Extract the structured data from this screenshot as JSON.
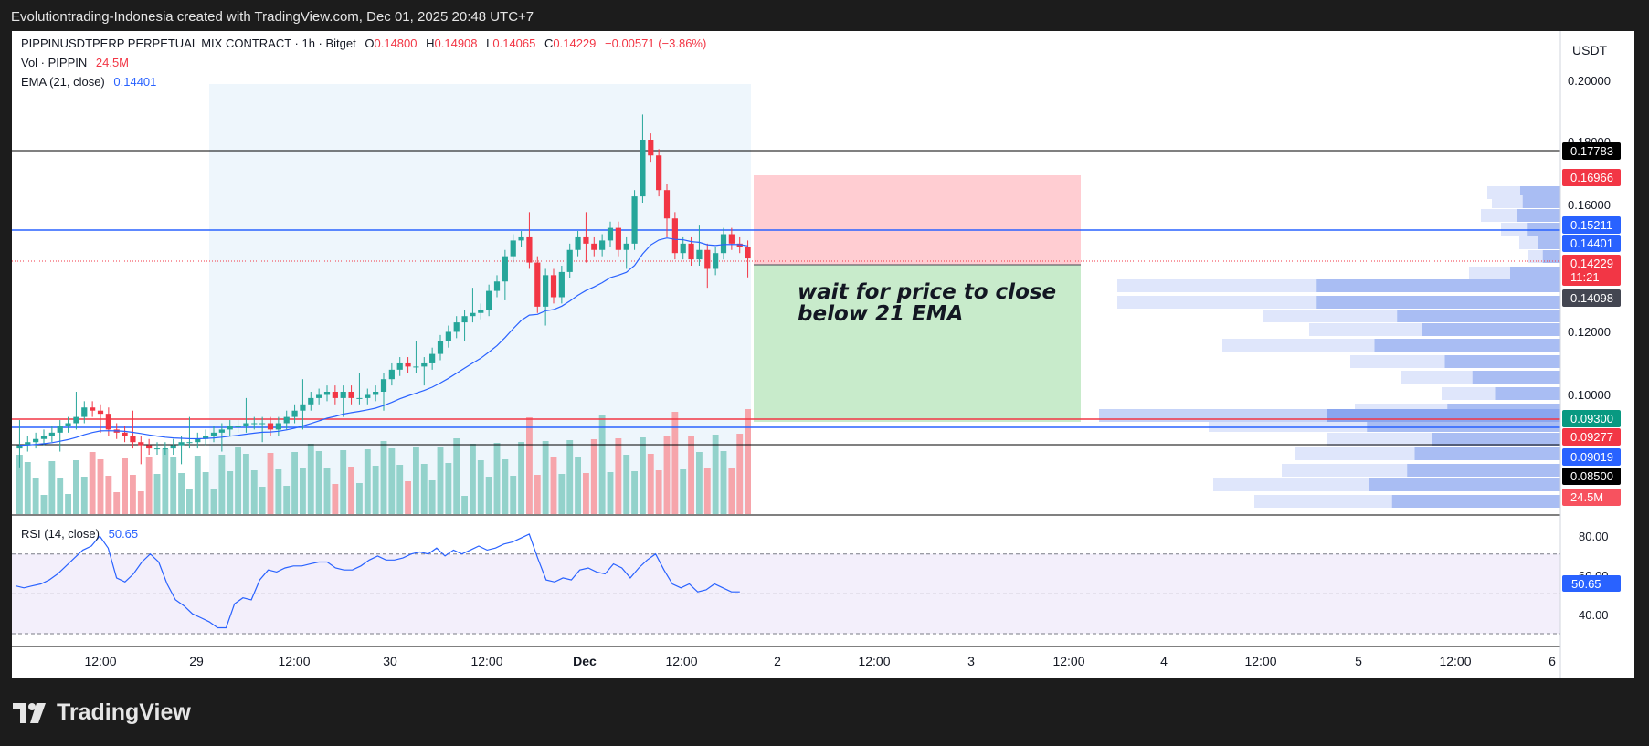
{
  "header": {
    "caption": "Evolutiontrading-Indonesia created with TradingView.com, Dec 01, 2025 20:48 UTC+7"
  },
  "legend": {
    "symbol": "PIPPINUSDTPERP PERPETUAL MIX CONTRACT · 1h · Bitget",
    "open_label": "O",
    "open": "0.14800",
    "high_label": "H",
    "high": "0.14908",
    "low_label": "L",
    "low": "0.14065",
    "close_label": "C",
    "close": "0.14229",
    "change": "−0.00571 (−3.86%)",
    "vol_label": "Vol · PIPPIN",
    "vol_value": "24.5M",
    "ema_label": "EMA (21, close)",
    "ema_value": "0.14401",
    "rsi_label": "RSI (14, close)",
    "rsi_value": "50.65"
  },
  "currency": "USDT",
  "annotation": {
    "line1": "wait for price to close",
    "line2": "below 21 EMA"
  },
  "brand": {
    "name": "TradingView"
  },
  "price_axis": {
    "ticks": [
      "0.20000",
      "0.18000",
      "0.16000",
      "0.12000",
      "0.10000"
    ],
    "rsi_ticks": [
      "80.00",
      "60.00",
      "40.00"
    ]
  },
  "price_labels": [
    {
      "text": "0.17783",
      "color": "#000000"
    },
    {
      "text": "0.16966",
      "color": "#f23645"
    },
    {
      "text": "0.15211",
      "color": "#2962ff"
    },
    {
      "text": "0.14401",
      "color": "#2962ff"
    },
    {
      "text": "0.14229",
      "color": "#f23645",
      "sub": "11:21"
    },
    {
      "text": "0.14098",
      "color": "#434651"
    },
    {
      "text": "0.09300",
      "color": "#089981"
    },
    {
      "text": "0.09277",
      "color": "#f23645"
    },
    {
      "text": "0.09019",
      "color": "#2962ff"
    },
    {
      "text": "0.08500",
      "color": "#000000"
    },
    {
      "text": "24.5M",
      "color": "#f7525f"
    }
  ],
  "time_axis": [
    "12:00",
    "29",
    "12:00",
    "30",
    "12:00",
    "Dec",
    "12:00",
    "2",
    "12:00",
    "3",
    "12:00",
    "4",
    "12:00",
    "5",
    "12:00",
    "6"
  ],
  "colors": {
    "up": "#26a69a",
    "down": "#f23645",
    "ema": "#2962ff",
    "rsi": "#2962ff",
    "stop_zone": "#ffcdd2",
    "target_zone": "#c8ebcb",
    "session": "#eef6fc"
  },
  "chart_data": {
    "type": "candlestick",
    "timeframe": "1h",
    "price_range": [
      0.08,
      0.205
    ],
    "levels": [
      0.17783,
      0.16966,
      0.15211,
      0.14401,
      0.14229,
      0.14098,
      0.093,
      0.09277,
      0.09019,
      0.085
    ],
    "price_series": [
      0.083,
      0.084,
      0.085,
      0.086,
      0.087,
      0.089,
      0.09,
      0.092,
      0.095,
      0.094,
      0.093,
      0.088,
      0.087,
      0.086,
      0.084,
      0.083,
      0.082,
      0.082,
      0.082,
      0.083,
      0.084,
      0.084,
      0.085,
      0.086,
      0.087,
      0.088,
      0.089,
      0.089,
      0.09,
      0.09,
      0.09,
      0.088,
      0.09,
      0.092,
      0.094,
      0.096,
      0.098,
      0.099,
      0.1,
      0.098,
      0.1,
      0.098,
      0.098,
      0.099,
      0.1,
      0.104,
      0.107,
      0.109,
      0.108,
      0.108,
      0.109,
      0.112,
      0.116,
      0.119,
      0.122,
      0.124,
      0.125,
      0.126,
      0.132,
      0.135,
      0.143,
      0.148,
      0.149,
      0.141,
      0.127,
      0.137,
      0.13,
      0.138,
      0.145,
      0.149,
      0.147,
      0.145,
      0.148,
      0.152,
      0.145,
      0.147,
      0.162,
      0.18,
      0.175,
      0.164,
      0.155,
      0.144,
      0.147,
      0.142,
      0.145,
      0.139,
      0.144,
      0.15,
      0.147,
      0.146,
      0.1423
    ],
    "rsi_range": [
      30,
      85
    ],
    "rsi_series": [
      54,
      53,
      54,
      55,
      57,
      60,
      64,
      68,
      72,
      74,
      79,
      73,
      58,
      56,
      60,
      66,
      70,
      66,
      55,
      47,
      44,
      40,
      38,
      36,
      33,
      33,
      45,
      48,
      47,
      57,
      62,
      61,
      63,
      64,
      64,
      65,
      66,
      66,
      63,
      62,
      62,
      64,
      67,
      69,
      67,
      67,
      68,
      70,
      71,
      70,
      73,
      69,
      72,
      70,
      72,
      74,
      72,
      73,
      75,
      76,
      78,
      80,
      68,
      57,
      56,
      58,
      57,
      62,
      63,
      61,
      60,
      65,
      63,
      58,
      63,
      67,
      70,
      62,
      55,
      53,
      55,
      51,
      52,
      55,
      53,
      51,
      51
    ]
  }
}
